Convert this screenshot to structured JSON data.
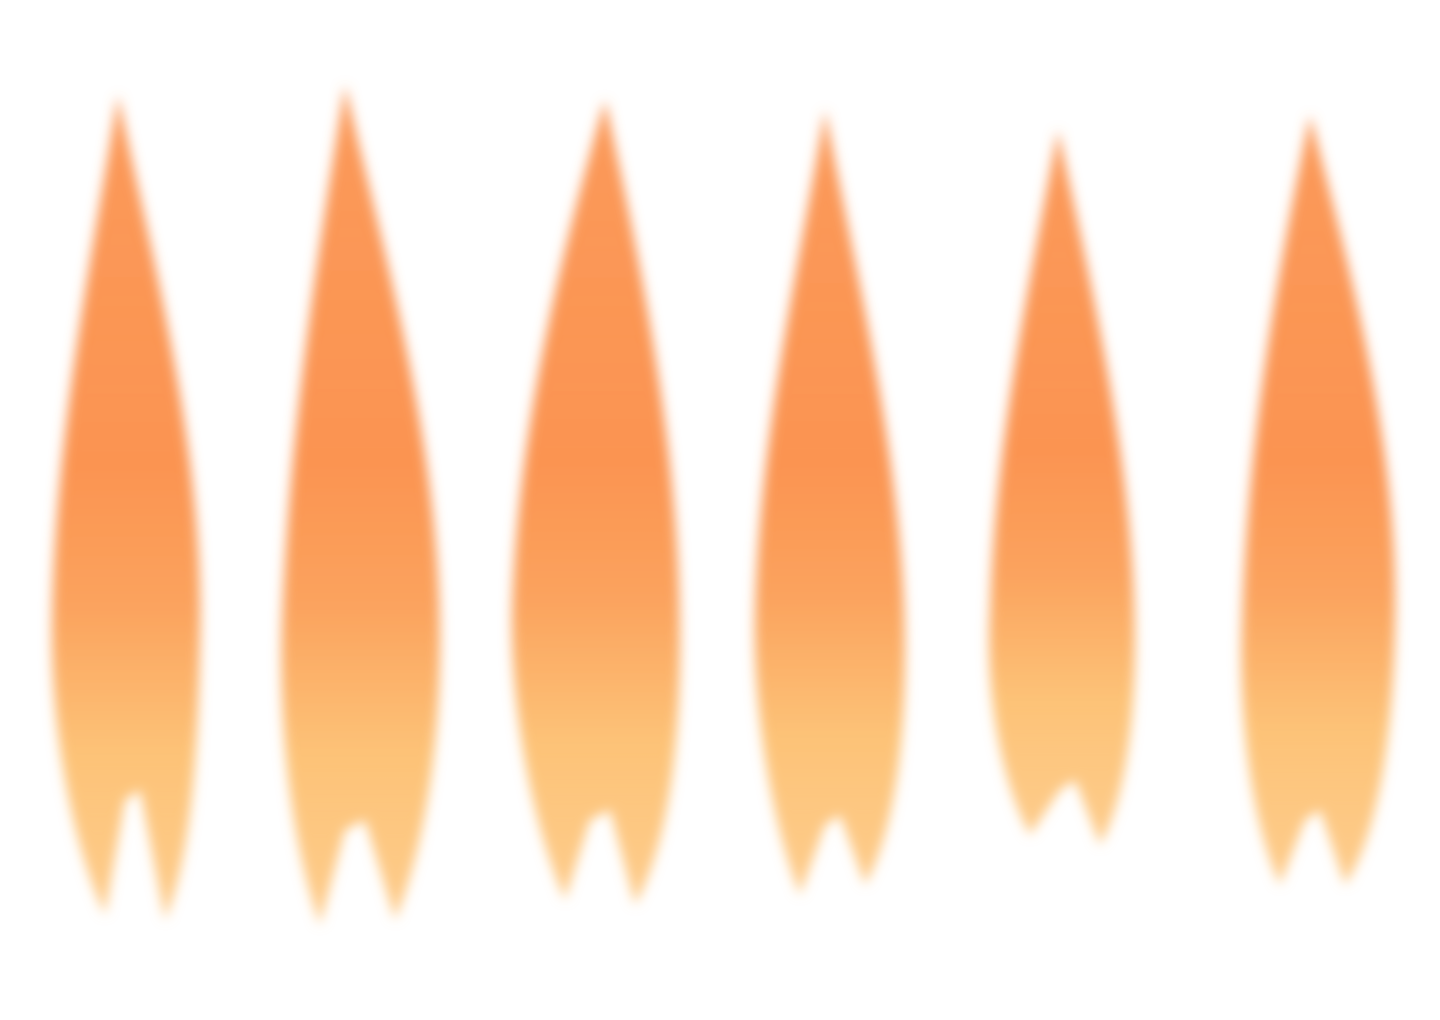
{
  "sprite_sheet": {
    "background": "#ffffff",
    "colors": {
      "tip": "#fb9451",
      "mid": "#fba35e",
      "base": "#fdc378"
    },
    "frames": [
      {
        "name": "flame-frame-1"
      },
      {
        "name": "flame-frame-2"
      },
      {
        "name": "flame-frame-3"
      },
      {
        "name": "flame-frame-4"
      },
      {
        "name": "flame-frame-5"
      },
      {
        "name": "flame-frame-6"
      }
    ]
  }
}
